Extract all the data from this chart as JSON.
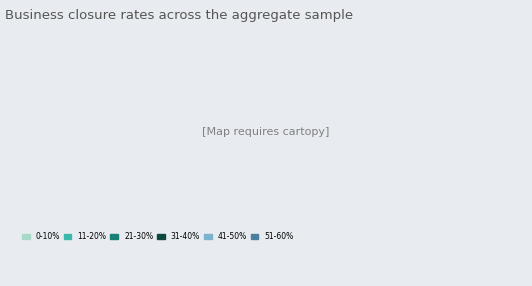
{
  "title": "Business closure rates across the aggregate sample",
  "title_fontsize": 9.5,
  "title_color": "#555555",
  "background_color": "#e8ecf0",
  "ocean_color": "#e8ecf0",
  "border_color": "#ffffff",
  "legend_labels": [
    "0-10%",
    "11-20%",
    "21-30%",
    "31-40%",
    "41-50%",
    "51-60%"
  ],
  "legend_colors": [
    "#a8d8c8",
    "#3cb8aa",
    "#1a8075",
    "#0d4840",
    "#7ab3cc",
    "#4a7fa0"
  ],
  "no_data_color": "#d0d0d0",
  "xlim": [
    -180,
    180
  ],
  "ylim": [
    -58,
    83
  ]
}
